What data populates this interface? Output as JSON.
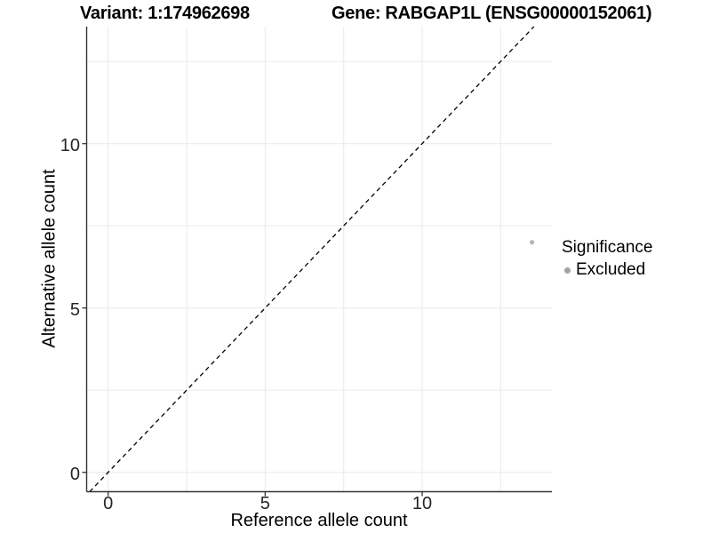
{
  "figure": {
    "title_variant": "Variant: 1:174962698",
    "title_gene": "Gene: RABGAP1L (ENSG00000152061)"
  },
  "chart_data": {
    "type": "scatter",
    "xlabel": "Reference allele count",
    "ylabel": "Alternative allele count",
    "x_ticks": [
      0,
      5,
      10
    ],
    "y_ticks": [
      0,
      5,
      10
    ],
    "x_minor_breaks": [
      2.5,
      7.5,
      12.5
    ],
    "y_minor_breaks": [
      2.5,
      7.5,
      12.5
    ],
    "xlim": [
      -0.69,
      14.13
    ],
    "ylim": [
      -0.59,
      13.56
    ],
    "grid": true,
    "identity_line": {
      "slope": 1,
      "intercept": 0,
      "style": "dashed",
      "color": "#000000"
    },
    "series": [
      {
        "name": "Excluded",
        "points": [
          {
            "x": 13.5,
            "y": 7
          }
        ],
        "color": "#b5b5b5"
      }
    ],
    "legend": {
      "title": "Significance",
      "position": "right",
      "items": [
        {
          "label": "Excluded",
          "color": "#a3a3a3"
        }
      ]
    },
    "colors": {
      "grid": "#ececec",
      "axis": "#333333",
      "tick_text": "#262626",
      "title_text": "#000000"
    }
  }
}
